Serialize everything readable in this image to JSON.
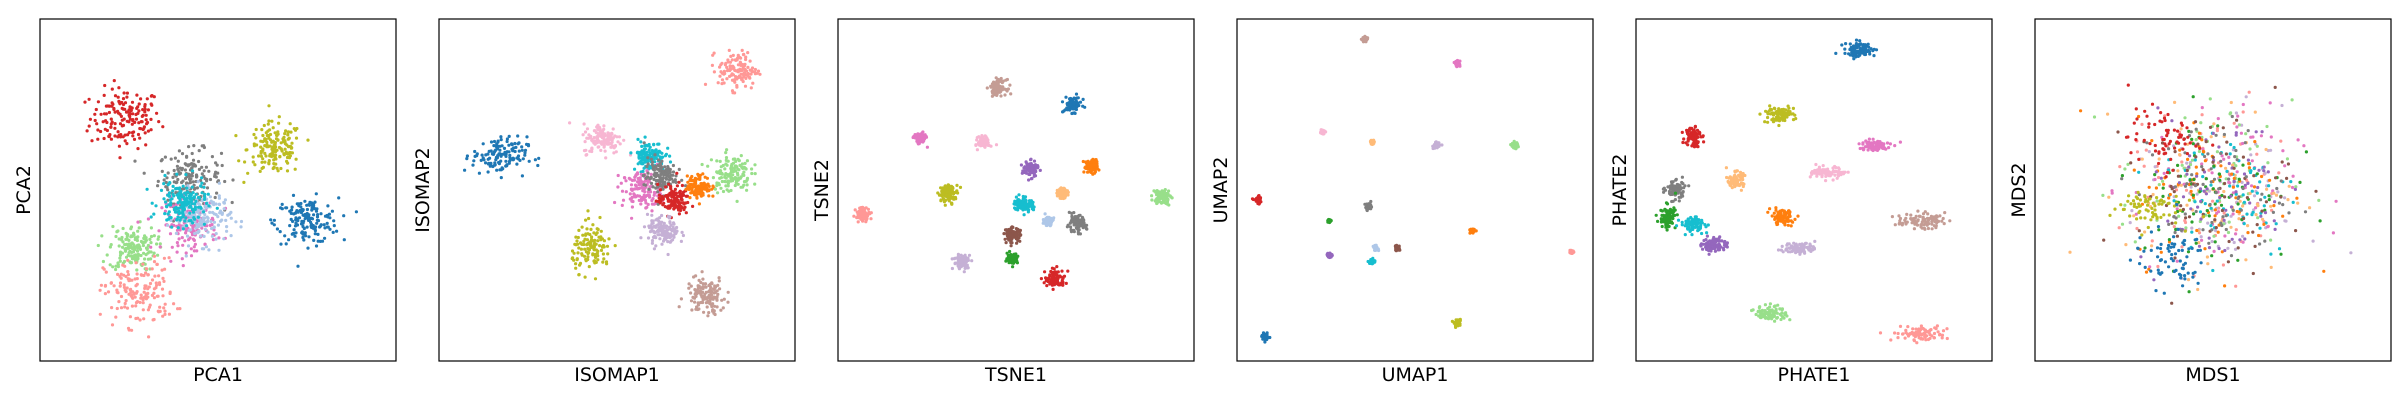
{
  "figure": {
    "panels": [
      "PCA",
      "ISOMAP",
      "TSNE",
      "UMAP",
      "PHATE",
      "MDS"
    ]
  },
  "palette": [
    "#1f77b4",
    "#ff7f0e",
    "#2ca02c",
    "#d62728",
    "#9467bd",
    "#8c564b",
    "#e377c2",
    "#7f7f7f",
    "#bcbd22",
    "#17becf",
    "#aec7e8",
    "#ffbb78",
    "#98df8a",
    "#ff9896",
    "#c5b0d5",
    "#c49c94",
    "#f7b6d2"
  ],
  "chart_data": [
    {
      "type": "scatter",
      "title": "",
      "xlabel": "PCA1",
      "ylabel": "PCA2",
      "xlim": [
        0,
        100
      ],
      "ylim": [
        0,
        100
      ],
      "grid": false,
      "legend": "none",
      "ticks": "none",
      "clusters": [
        {
          "color": "#d62728",
          "center": [
            24,
            71
          ],
          "spread": [
            9,
            8
          ]
        },
        {
          "color": "#7f7f7f",
          "center": [
            42,
            54
          ],
          "spread": [
            8,
            7
          ]
        },
        {
          "color": "#bcbd22",
          "center": [
            66,
            62
          ],
          "spread": [
            7,
            7
          ]
        },
        {
          "color": "#1f77b4",
          "center": [
            75,
            41
          ],
          "spread": [
            8,
            6
          ]
        },
        {
          "color": "#98df8a",
          "center": [
            26,
            33
          ],
          "spread": [
            6,
            6
          ]
        },
        {
          "color": "#ff9896",
          "center": [
            28,
            20
          ],
          "spread": [
            9,
            9
          ]
        },
        {
          "color": "#e377c2",
          "center": [
            42,
            40
          ],
          "spread": [
            7,
            7
          ]
        },
        {
          "color": "#aec7e8",
          "center": [
            46,
            42
          ],
          "spread": [
            7,
            7
          ]
        },
        {
          "color": "#17becf",
          "center": [
            40,
            46
          ],
          "spread": [
            6,
            6
          ]
        }
      ]
    },
    {
      "type": "scatter",
      "title": "",
      "xlabel": "ISOMAP1",
      "ylabel": "ISOMAP2",
      "xlim": [
        0,
        100
      ],
      "ylim": [
        0,
        100
      ],
      "grid": false,
      "legend": "none",
      "ticks": "none",
      "clusters": [
        {
          "color": "#1f77b4",
          "center": [
            17,
            60
          ],
          "spread": [
            7,
            5
          ]
        },
        {
          "color": "#ff9896",
          "center": [
            84,
            85
          ],
          "spread": [
            5,
            5
          ]
        },
        {
          "color": "#f7b6d2",
          "center": [
            46,
            65
          ],
          "spread": [
            5,
            4
          ]
        },
        {
          "color": "#17becf",
          "center": [
            59,
            60
          ],
          "spread": [
            4,
            4
          ]
        },
        {
          "color": "#e377c2",
          "center": [
            57,
            50
          ],
          "spread": [
            5,
            5
          ]
        },
        {
          "color": "#7f7f7f",
          "center": [
            62,
            54
          ],
          "spread": [
            4,
            5
          ]
        },
        {
          "color": "#d62728",
          "center": [
            66,
            47
          ],
          "spread": [
            4,
            4
          ]
        },
        {
          "color": "#ff7f0e",
          "center": [
            73,
            51
          ],
          "spread": [
            3,
            3
          ]
        },
        {
          "color": "#98df8a",
          "center": [
            82,
            55
          ],
          "spread": [
            5,
            5
          ]
        },
        {
          "color": "#c5b0d5",
          "center": [
            63,
            38
          ],
          "spread": [
            4,
            4
          ]
        },
        {
          "color": "#bcbd22",
          "center": [
            43,
            33
          ],
          "spread": [
            5,
            6
          ]
        },
        {
          "color": "#c49c94",
          "center": [
            75,
            19
          ],
          "spread": [
            5,
            5
          ]
        }
      ]
    },
    {
      "type": "scatter",
      "title": "",
      "xlabel": "TSNE1",
      "ylabel": "TSNE2",
      "xlim": [
        0,
        100
      ],
      "ylim": [
        0,
        100
      ],
      "grid": false,
      "legend": "none",
      "ticks": "none",
      "clusters": [
        {
          "color": "#c49c94",
          "center": [
            45,
            80
          ],
          "spread": [
            2,
            2
          ]
        },
        {
          "color": "#1f77b4",
          "center": [
            66,
            75
          ],
          "spread": [
            2.2,
            2
          ]
        },
        {
          "color": "#e377c2",
          "center": [
            23,
            65
          ],
          "spread": [
            1.5,
            1.5
          ]
        },
        {
          "color": "#f7b6d2",
          "center": [
            41,
            64
          ],
          "spread": [
            1.5,
            1.5
          ]
        },
        {
          "color": "#9467bd",
          "center": [
            54,
            56
          ],
          "spread": [
            2,
            2
          ]
        },
        {
          "color": "#ff7f0e",
          "center": [
            71,
            57
          ],
          "spread": [
            1.8,
            1.8
          ]
        },
        {
          "color": "#ffbb78",
          "center": [
            63,
            49
          ],
          "spread": [
            1.2,
            1.2
          ]
        },
        {
          "color": "#ff9896",
          "center": [
            7,
            43
          ],
          "spread": [
            1.8,
            1.8
          ]
        },
        {
          "color": "#bcbd22",
          "center": [
            31,
            49
          ],
          "spread": [
            2.5,
            2.3
          ]
        },
        {
          "color": "#17becf",
          "center": [
            52,
            46
          ],
          "spread": [
            2.5,
            2
          ]
        },
        {
          "color": "#98df8a",
          "center": [
            91,
            48
          ],
          "spread": [
            2.2,
            2
          ]
        },
        {
          "color": "#aec7e8",
          "center": [
            59,
            41
          ],
          "spread": [
            1.2,
            1.2
          ]
        },
        {
          "color": "#7f7f7f",
          "center": [
            67,
            40
          ],
          "spread": [
            2.5,
            2.2
          ]
        },
        {
          "color": "#8c564b",
          "center": [
            49,
            37
          ],
          "spread": [
            2,
            1.8
          ]
        },
        {
          "color": "#c5b0d5",
          "center": [
            35,
            29
          ],
          "spread": [
            2.2,
            2
          ]
        },
        {
          "color": "#2ca02c",
          "center": [
            49,
            30
          ],
          "spread": [
            1.3,
            1.3
          ]
        },
        {
          "color": "#d62728",
          "center": [
            61,
            24
          ],
          "spread": [
            2.6,
            2.4
          ]
        }
      ]
    },
    {
      "type": "scatter",
      "title": "",
      "xlabel": "UMAP1",
      "ylabel": "UMAP2",
      "xlim": [
        0,
        100
      ],
      "ylim": [
        0,
        100
      ],
      "grid": false,
      "legend": "none",
      "ticks": "none",
      "clusters": [
        {
          "color": "#c49c94",
          "center": [
            36,
            94
          ],
          "spread": [
            0.8,
            0.8
          ]
        },
        {
          "color": "#e377c2",
          "center": [
            62,
            87
          ],
          "spread": [
            0.6,
            0.6
          ]
        },
        {
          "color": "#f7b6d2",
          "center": [
            24,
            67
          ],
          "spread": [
            0.6,
            0.6
          ]
        },
        {
          "color": "#ffbb78",
          "center": [
            38,
            64
          ],
          "spread": [
            0.5,
            0.5
          ]
        },
        {
          "color": "#c5b0d5",
          "center": [
            56,
            63
          ],
          "spread": [
            0.8,
            0.8
          ]
        },
        {
          "color": "#98df8a",
          "center": [
            78,
            63
          ],
          "spread": [
            0.8,
            0.8
          ]
        },
        {
          "color": "#d62728",
          "center": [
            6,
            47
          ],
          "spread": [
            1,
            1
          ]
        },
        {
          "color": "#7f7f7f",
          "center": [
            37,
            45
          ],
          "spread": [
            0.9,
            0.9
          ]
        },
        {
          "color": "#2ca02c",
          "center": [
            26,
            41
          ],
          "spread": [
            0.4,
            0.4
          ]
        },
        {
          "color": "#ff7f0e",
          "center": [
            66,
            38
          ],
          "spread": [
            0.6,
            0.6
          ]
        },
        {
          "color": "#aec7e8",
          "center": [
            39,
            33
          ],
          "spread": [
            0.6,
            0.6
          ]
        },
        {
          "color": "#8c564b",
          "center": [
            45,
            33
          ],
          "spread": [
            0.7,
            0.7
          ]
        },
        {
          "color": "#9467bd",
          "center": [
            26,
            31
          ],
          "spread": [
            0.6,
            0.6
          ]
        },
        {
          "color": "#17becf",
          "center": [
            38,
            29
          ],
          "spread": [
            0.7,
            0.7
          ]
        },
        {
          "color": "#ff9896",
          "center": [
            94,
            32
          ],
          "spread": [
            0.5,
            0.5
          ]
        },
        {
          "color": "#bcbd22",
          "center": [
            62,
            11
          ],
          "spread": [
            0.9,
            0.9
          ]
        },
        {
          "color": "#1f77b4",
          "center": [
            8,
            7
          ],
          "spread": [
            0.9,
            0.9
          ]
        }
      ]
    },
    {
      "type": "scatter",
      "title": "",
      "xlabel": "PHATE1",
      "ylabel": "PHATE2",
      "xlim": [
        0,
        100
      ],
      "ylim": [
        0,
        100
      ],
      "grid": false,
      "legend": "none",
      "ticks": "none",
      "clusters": [
        {
          "color": "#1f77b4",
          "center": [
            63,
            91
          ],
          "spread": [
            4,
            2
          ]
        },
        {
          "color": "#bcbd22",
          "center": [
            40,
            72
          ],
          "spread": [
            4,
            2
          ]
        },
        {
          "color": "#d62728",
          "center": [
            16,
            66
          ],
          "spread": [
            2,
            3
          ]
        },
        {
          "color": "#e377c2",
          "center": [
            67,
            63
          ],
          "spread": [
            4,
            1.5
          ]
        },
        {
          "color": "#f7b6d2",
          "center": [
            54,
            55
          ],
          "spread": [
            4,
            1.5
          ]
        },
        {
          "color": "#ffbb78",
          "center": [
            28,
            53
          ],
          "spread": [
            2,
            2
          ]
        },
        {
          "color": "#7f7f7f",
          "center": [
            11,
            50
          ],
          "spread": [
            2.5,
            2.5
          ]
        },
        {
          "color": "#2ca02c",
          "center": [
            9,
            42
          ],
          "spread": [
            2,
            3
          ]
        },
        {
          "color": "#17becf",
          "center": [
            16,
            40
          ],
          "spread": [
            3,
            2
          ]
        },
        {
          "color": "#ff7f0e",
          "center": [
            41,
            42
          ],
          "spread": [
            3,
            2
          ]
        },
        {
          "color": "#c49c94",
          "center": [
            80,
            41
          ],
          "spread": [
            6,
            2
          ]
        },
        {
          "color": "#9467bd",
          "center": [
            22,
            34
          ],
          "spread": [
            3,
            2
          ]
        },
        {
          "color": "#c5b0d5",
          "center": [
            46,
            33
          ],
          "spread": [
            4,
            1.5
          ]
        },
        {
          "color": "#98df8a",
          "center": [
            38,
            14
          ],
          "spread": [
            4,
            2
          ]
        },
        {
          "color": "#ff9896",
          "center": [
            80,
            8
          ],
          "spread": [
            7,
            2
          ]
        }
      ]
    },
    {
      "type": "scatter",
      "title": "",
      "xlabel": "MDS1",
      "ylabel": "MDS2",
      "xlim": [
        0,
        100
      ],
      "ylim": [
        0,
        100
      ],
      "grid": false,
      "legend": "none",
      "ticks": "none",
      "clusters": [
        {
          "color": "#ff9896",
          "center": [
            50,
            50
          ],
          "spread": [
            22,
            22
          ]
        },
        {
          "color": "#c5b0d5",
          "center": [
            52,
            48
          ],
          "spread": [
            22,
            22
          ]
        },
        {
          "color": "#e377c2",
          "center": [
            50,
            50
          ],
          "spread": [
            22,
            22
          ]
        },
        {
          "color": "#98df8a",
          "center": [
            48,
            52
          ],
          "spread": [
            22,
            22
          ]
        },
        {
          "color": "#ffbb78",
          "center": [
            50,
            50
          ],
          "spread": [
            22,
            22
          ]
        },
        {
          "color": "#17becf",
          "center": [
            55,
            50
          ],
          "spread": [
            18,
            18
          ]
        },
        {
          "color": "#ff7f0e",
          "center": [
            50,
            50
          ],
          "spread": [
            20,
            20
          ]
        },
        {
          "color": "#2ca02c",
          "center": [
            50,
            50
          ],
          "spread": [
            20,
            20
          ]
        },
        {
          "color": "#9467bd",
          "center": [
            50,
            50
          ],
          "spread": [
            20,
            20
          ]
        },
        {
          "color": "#8c564b",
          "center": [
            50,
            50
          ],
          "spread": [
            20,
            20
          ]
        },
        {
          "color": "#7f7f7f",
          "center": [
            50,
            50
          ],
          "spread": [
            19,
            19
          ]
        },
        {
          "color": "#d62728",
          "center": [
            36,
            65
          ],
          "spread": [
            9,
            8
          ]
        },
        {
          "color": "#bcbd22",
          "center": [
            31,
            45
          ],
          "spread": [
            9,
            5
          ]
        },
        {
          "color": "#1f77b4",
          "center": [
            38,
            30
          ],
          "spread": [
            9,
            8
          ]
        }
      ]
    }
  ]
}
